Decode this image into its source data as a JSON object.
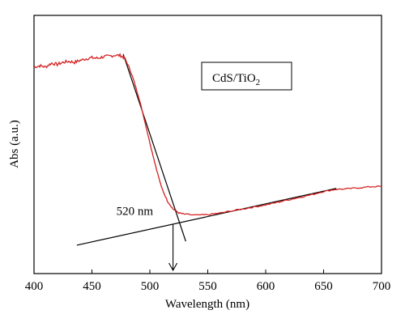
{
  "chart_data": {
    "type": "line",
    "title": "",
    "xlabel": "Wavelength (nm)",
    "ylabel": "Abs (a.u.)",
    "xlim": [
      400,
      700
    ],
    "ylim": [
      0,
      1
    ],
    "x_ticks": [
      400,
      450,
      500,
      550,
      600,
      650,
      700
    ],
    "y_ticks_shown": false,
    "grid": false,
    "legend": {
      "text_main": "CdS/TiO",
      "text_sub": "2",
      "position": "top-right"
    },
    "series": [
      {
        "name": "CdS/TiO2",
        "color": "#d62020",
        "points": [
          [
            400,
            0.8
          ],
          [
            405,
            0.805
          ],
          [
            410,
            0.8
          ],
          [
            415,
            0.815
          ],
          [
            420,
            0.81
          ],
          [
            425,
            0.818
          ],
          [
            430,
            0.822
          ],
          [
            435,
            0.818
          ],
          [
            440,
            0.826
          ],
          [
            445,
            0.832
          ],
          [
            450,
            0.836
          ],
          [
            455,
            0.834
          ],
          [
            460,
            0.84
          ],
          [
            465,
            0.842
          ],
          [
            470,
            0.846
          ],
          [
            475,
            0.844
          ],
          [
            478,
            0.836
          ],
          [
            482,
            0.8
          ],
          [
            486,
            0.75
          ],
          [
            490,
            0.69
          ],
          [
            494,
            0.62
          ],
          [
            498,
            0.545
          ],
          [
            502,
            0.47
          ],
          [
            506,
            0.4
          ],
          [
            510,
            0.335
          ],
          [
            515,
            0.282
          ],
          [
            520,
            0.25
          ],
          [
            525,
            0.235
          ],
          [
            530,
            0.23
          ],
          [
            540,
            0.226
          ],
          [
            550,
            0.228
          ],
          [
            560,
            0.234
          ],
          [
            570,
            0.242
          ],
          [
            580,
            0.25
          ],
          [
            590,
            0.258
          ],
          [
            600,
            0.266
          ],
          [
            610,
            0.276
          ],
          [
            620,
            0.286
          ],
          [
            630,
            0.296
          ],
          [
            640,
            0.306
          ],
          [
            650,
            0.318
          ],
          [
            660,
            0.326
          ],
          [
            670,
            0.328
          ],
          [
            680,
            0.332
          ],
          [
            690,
            0.336
          ],
          [
            700,
            0.338
          ]
        ]
      }
    ],
    "tangent_lines": [
      {
        "x1": 477,
        "y1": 0.85,
        "x2": 531,
        "y2": 0.125
      },
      {
        "x1": 437,
        "y1": 0.11,
        "x2": 661,
        "y2": 0.33
      }
    ],
    "annotation": {
      "text": "520 nm",
      "x": 520,
      "arrow_from_y": 0.19,
      "arrow_to_y": 0.0
    }
  }
}
